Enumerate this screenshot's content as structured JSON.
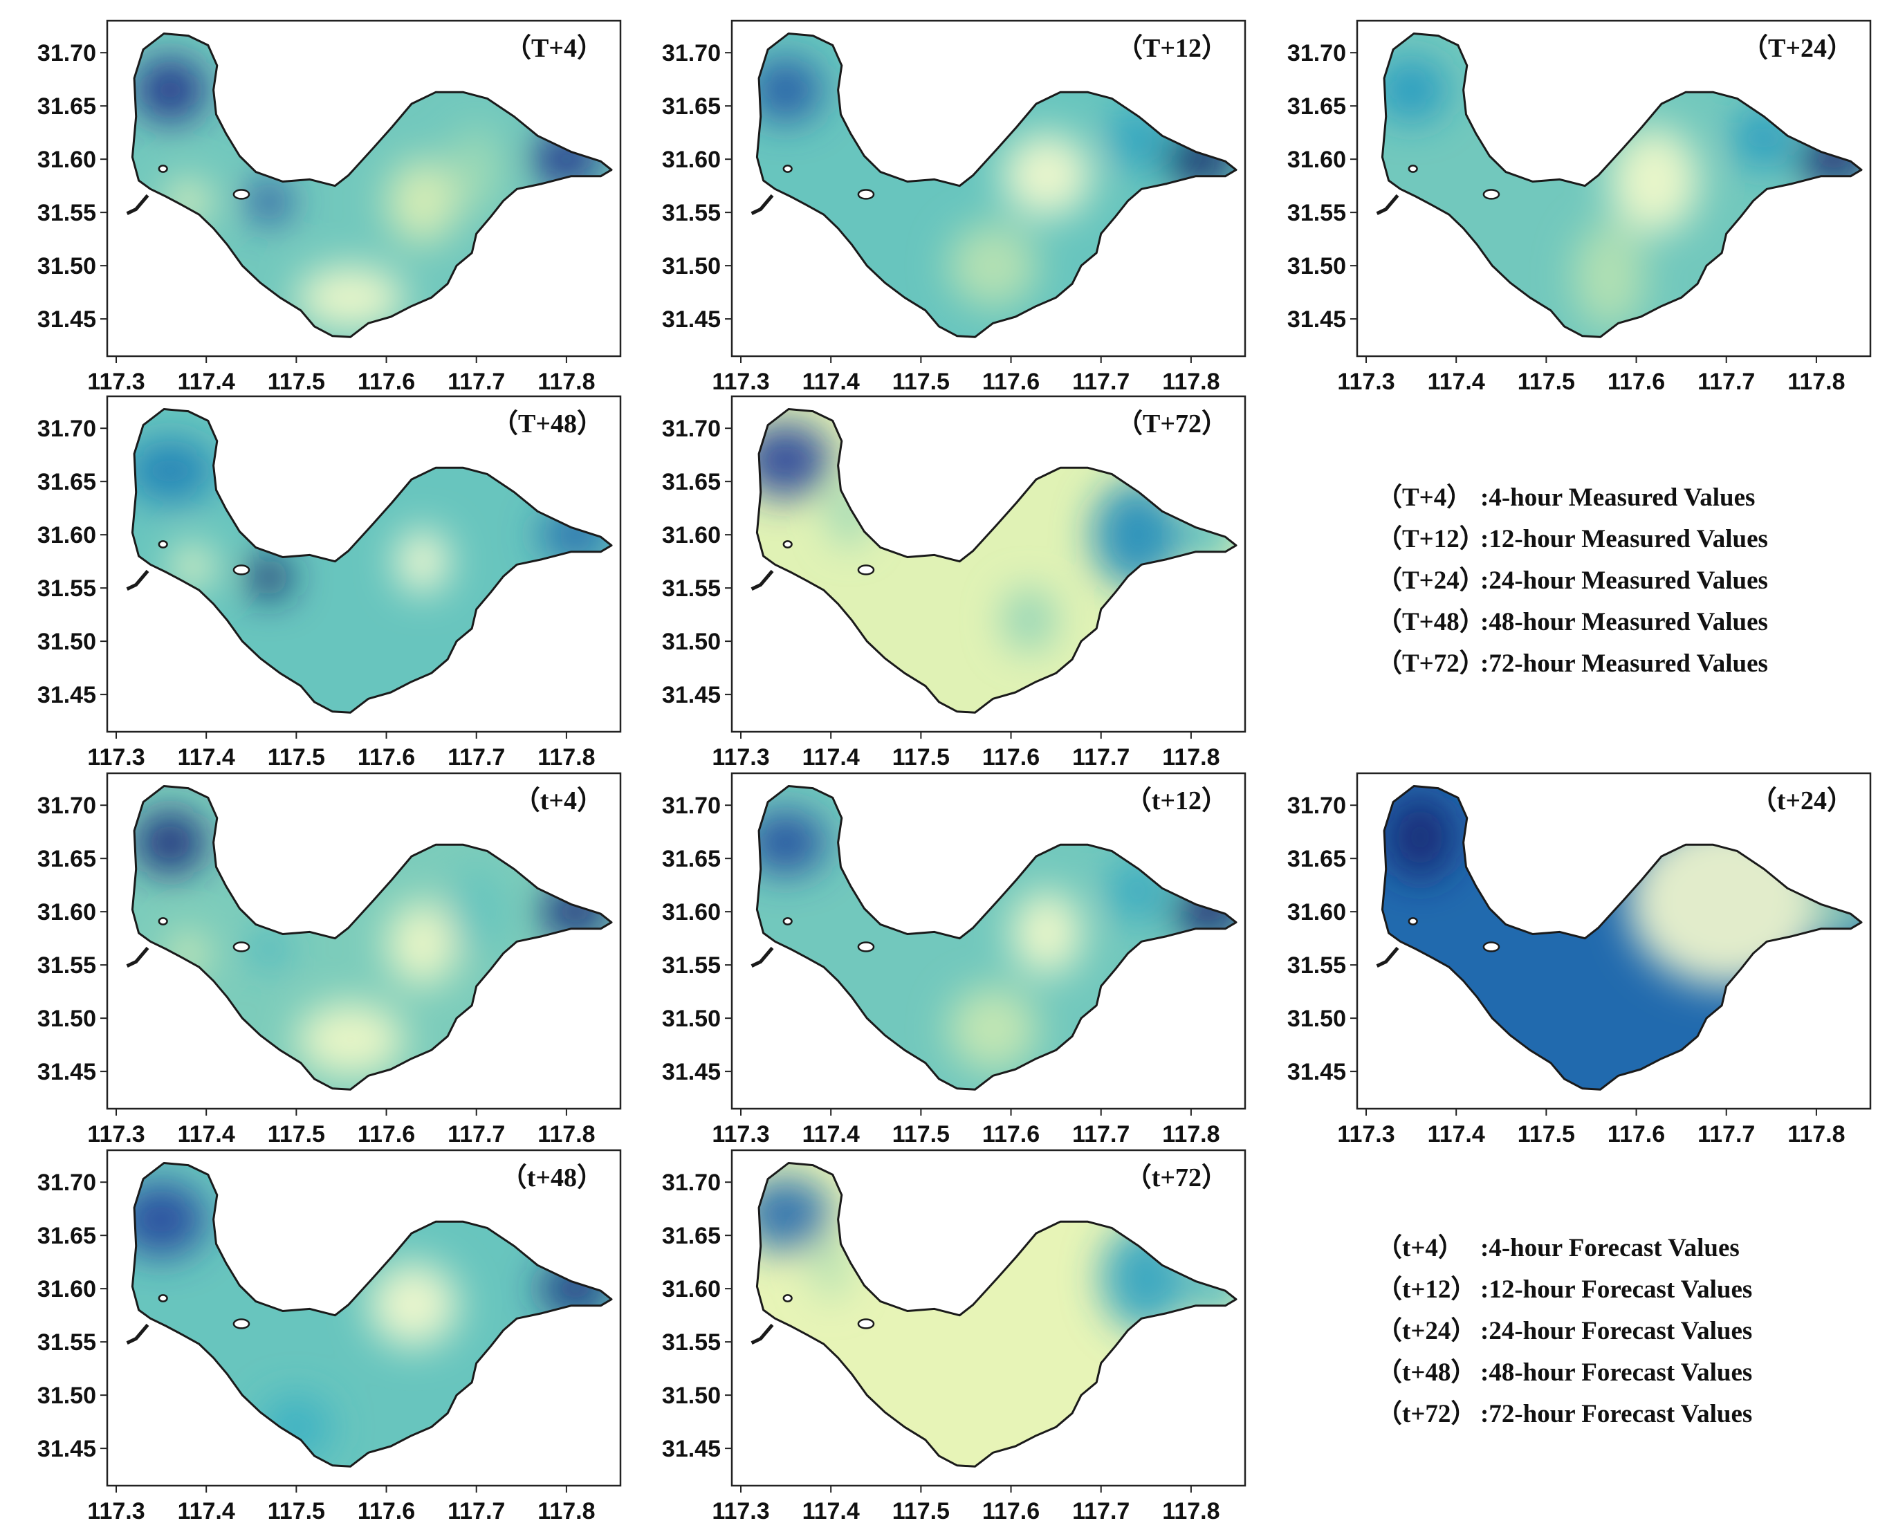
{
  "colormap": {
    "name": "YlGnBu",
    "stops": [
      "#ffffd9",
      "#e6f4b6",
      "#b7e2b1",
      "#7ecdbb",
      "#41b6c4",
      "#1d91c0",
      "#225ea8",
      "#253494",
      "#081d58"
    ]
  },
  "axes": {
    "x_ticks": [
      "117.3",
      "117.4",
      "117.5",
      "117.6",
      "117.7",
      "117.8"
    ],
    "x_tick_values": [
      117.3,
      117.4,
      117.5,
      117.6,
      117.7,
      117.8
    ],
    "y_ticks": [
      "31.70",
      "31.65",
      "31.60",
      "31.55",
      "31.50",
      "31.45"
    ],
    "y_tick_values": [
      31.7,
      31.65,
      31.6,
      31.55,
      31.5,
      31.45
    ],
    "x_range": [
      117.29,
      117.86
    ],
    "y_range": [
      31.415,
      31.73
    ]
  },
  "lake_outline": [
    [
      117.325,
      31.58
    ],
    [
      117.318,
      31.602
    ],
    [
      117.322,
      31.64
    ],
    [
      117.32,
      31.676
    ],
    [
      117.33,
      31.703
    ],
    [
      117.353,
      31.718
    ],
    [
      117.38,
      31.716
    ],
    [
      117.402,
      31.707
    ],
    [
      117.412,
      31.688
    ],
    [
      117.408,
      31.665
    ],
    [
      117.411,
      31.642
    ],
    [
      117.422,
      31.624
    ],
    [
      117.437,
      31.603
    ],
    [
      117.455,
      31.588
    ],
    [
      117.485,
      31.579
    ],
    [
      117.515,
      31.581
    ],
    [
      117.543,
      31.575
    ],
    [
      117.558,
      31.585
    ],
    [
      117.585,
      31.61
    ],
    [
      117.606,
      31.63
    ],
    [
      117.628,
      31.652
    ],
    [
      117.655,
      31.663
    ],
    [
      117.685,
      31.663
    ],
    [
      117.712,
      31.657
    ],
    [
      117.742,
      31.64
    ],
    [
      117.768,
      31.622
    ],
    [
      117.805,
      31.607
    ],
    [
      117.838,
      31.598
    ],
    [
      117.85,
      31.59
    ],
    [
      117.838,
      31.584
    ],
    [
      117.805,
      31.584
    ],
    [
      117.773,
      31.577
    ],
    [
      117.745,
      31.572
    ],
    [
      117.73,
      31.561
    ],
    [
      117.716,
      31.546
    ],
    [
      117.7,
      31.53
    ],
    [
      117.695,
      31.512
    ],
    [
      117.678,
      31.5
    ],
    [
      117.668,
      31.483
    ],
    [
      117.65,
      31.47
    ],
    [
      117.628,
      31.462
    ],
    [
      117.605,
      31.452
    ],
    [
      117.58,
      31.446
    ],
    [
      117.56,
      31.433
    ],
    [
      117.54,
      31.434
    ],
    [
      117.52,
      31.443
    ],
    [
      117.505,
      31.458
    ],
    [
      117.482,
      31.47
    ],
    [
      117.46,
      31.484
    ],
    [
      117.44,
      31.5
    ],
    [
      117.423,
      31.52
    ],
    [
      117.408,
      31.535
    ],
    [
      117.392,
      31.548
    ],
    [
      117.373,
      31.557
    ],
    [
      117.355,
      31.565
    ],
    [
      117.338,
      31.572
    ]
  ],
  "islands": [
    {
      "lon": 117.352,
      "lat": 31.591,
      "rx": 0.0045,
      "ry": 0.003
    },
    {
      "lon": 117.439,
      "lat": 31.567,
      "rx": 0.0085,
      "ry": 0.0042
    }
  ],
  "figure": {
    "panels": [
      {
        "key": "T+4",
        "label": "（T+4）",
        "base": 0.4,
        "blobs": [
          [
            117.36,
            31.665,
            0.04,
            0.03,
            0.5
          ],
          [
            117.47,
            31.56,
            0.025,
            0.02,
            0.4
          ],
          [
            117.38,
            31.56,
            0.025,
            0.02,
            -0.3
          ],
          [
            117.56,
            31.47,
            0.06,
            0.03,
            -0.35
          ],
          [
            117.64,
            31.56,
            0.04,
            0.04,
            -0.25
          ],
          [
            117.8,
            31.6,
            0.04,
            0.025,
            0.5
          ],
          [
            117.7,
            31.59,
            0.03,
            0.04,
            -0.1
          ]
        ]
      },
      {
        "key": "T+12",
        "label": "（T+12）",
        "base": 0.42,
        "blobs": [
          [
            117.35,
            31.665,
            0.04,
            0.03,
            0.35
          ],
          [
            117.64,
            31.585,
            0.05,
            0.04,
            -0.38
          ],
          [
            117.58,
            31.5,
            0.05,
            0.04,
            -0.18
          ],
          [
            117.81,
            31.6,
            0.04,
            0.025,
            0.55
          ],
          [
            117.74,
            31.62,
            0.03,
            0.03,
            0.15
          ]
        ]
      },
      {
        "key": "T+24",
        "label": "（T+24）",
        "base": 0.4,
        "blobs": [
          [
            117.35,
            31.665,
            0.04,
            0.03,
            0.2
          ],
          [
            117.62,
            31.58,
            0.05,
            0.05,
            -0.35
          ],
          [
            117.57,
            31.49,
            0.04,
            0.05,
            -0.15
          ],
          [
            117.82,
            31.6,
            0.04,
            0.025,
            0.55
          ],
          [
            117.74,
            31.62,
            0.03,
            0.03,
            0.2
          ]
        ]
      },
      {
        "key": "T+48",
        "label": "（T+48）",
        "base": 0.42,
        "blobs": [
          [
            117.36,
            31.66,
            0.05,
            0.03,
            0.25
          ],
          [
            117.47,
            31.56,
            0.025,
            0.02,
            0.55
          ],
          [
            117.385,
            31.57,
            0.025,
            0.02,
            -0.35
          ],
          [
            117.64,
            31.575,
            0.03,
            0.03,
            -0.4
          ],
          [
            117.81,
            31.6,
            0.04,
            0.025,
            0.3
          ]
        ]
      },
      {
        "key": "T+72",
        "label": "（T+72）",
        "base": 0.14,
        "blobs": [
          [
            117.35,
            31.67,
            0.05,
            0.035,
            0.7
          ],
          [
            117.74,
            31.6,
            0.05,
            0.05,
            0.5
          ],
          [
            117.82,
            31.6,
            0.03,
            0.025,
            0.35
          ],
          [
            117.62,
            31.52,
            0.03,
            0.03,
            0.2
          ],
          [
            117.42,
            31.62,
            0.02,
            0.03,
            0.2
          ]
        ]
      },
      {
        "key": "t+4",
        "label": "（t+4）",
        "base": 0.38,
        "blobs": [
          [
            117.36,
            31.665,
            0.04,
            0.03,
            0.55
          ],
          [
            117.47,
            31.565,
            0.02,
            0.015,
            0.15
          ],
          [
            117.38,
            31.56,
            0.02,
            0.02,
            -0.25
          ],
          [
            117.56,
            31.48,
            0.06,
            0.035,
            -0.32
          ],
          [
            117.64,
            31.57,
            0.04,
            0.04,
            -0.32
          ],
          [
            117.81,
            31.6,
            0.04,
            0.025,
            0.55
          ],
          [
            117.7,
            31.6,
            0.03,
            0.04,
            0.05
          ]
        ]
      },
      {
        "key": "t+12",
        "label": "（t+12）",
        "base": 0.4,
        "blobs": [
          [
            117.35,
            31.665,
            0.045,
            0.03,
            0.4
          ],
          [
            117.64,
            31.58,
            0.04,
            0.04,
            -0.35
          ],
          [
            117.58,
            31.49,
            0.05,
            0.04,
            -0.2
          ],
          [
            117.82,
            31.6,
            0.04,
            0.025,
            0.55
          ],
          [
            117.74,
            31.62,
            0.03,
            0.03,
            0.15
          ]
        ]
      },
      {
        "key": "t+24",
        "label": "（t+24）",
        "base": 0.72,
        "blobs": [
          [
            117.36,
            31.67,
            0.04,
            0.04,
            0.22
          ],
          [
            117.7,
            31.61,
            0.11,
            0.08,
            -0.68
          ],
          [
            117.83,
            31.6,
            0.04,
            0.025,
            -0.4
          ]
        ]
      },
      {
        "key": "t+48",
        "label": "（t+48）",
        "base": 0.42,
        "blobs": [
          [
            117.35,
            31.665,
            0.05,
            0.035,
            0.4
          ],
          [
            117.63,
            31.585,
            0.05,
            0.04,
            -0.38
          ],
          [
            117.81,
            31.6,
            0.04,
            0.025,
            0.5
          ],
          [
            117.5,
            31.47,
            0.04,
            0.03,
            0.1
          ]
        ]
      },
      {
        "key": "t+72",
        "label": "（t+72）",
        "base": 0.12,
        "blobs": [
          [
            117.35,
            31.67,
            0.05,
            0.035,
            0.6
          ],
          [
            117.75,
            31.61,
            0.05,
            0.05,
            0.45
          ],
          [
            117.83,
            31.6,
            0.03,
            0.025,
            0.4
          ],
          [
            117.4,
            31.62,
            0.02,
            0.03,
            0.15
          ]
        ]
      }
    ],
    "legend_measured": [
      {
        "key": "（T+4）",
        "text": ":4-hour Measured Values"
      },
      {
        "key": "（T+12）",
        "text": ":12-hour Measured Values"
      },
      {
        "key": "（T+24）",
        "text": ":24-hour Measured Values"
      },
      {
        "key": "（T+48）",
        "text": ":48-hour Measured Values"
      },
      {
        "key": "（T+72）",
        "text": ":72-hour Measured Values"
      }
    ],
    "legend_forecast": [
      {
        "key": "（t+4）",
        "text": ":4-hour Forecast Values"
      },
      {
        "key": "（t+12）",
        "text": ":12-hour Forecast Values"
      },
      {
        "key": "（t+24）",
        "text": ":24-hour Forecast Values"
      },
      {
        "key": "（t+48）",
        "text": ":48-hour Forecast Values"
      },
      {
        "key": "（t+72）",
        "text": ":72-hour Forecast Values"
      }
    ]
  }
}
